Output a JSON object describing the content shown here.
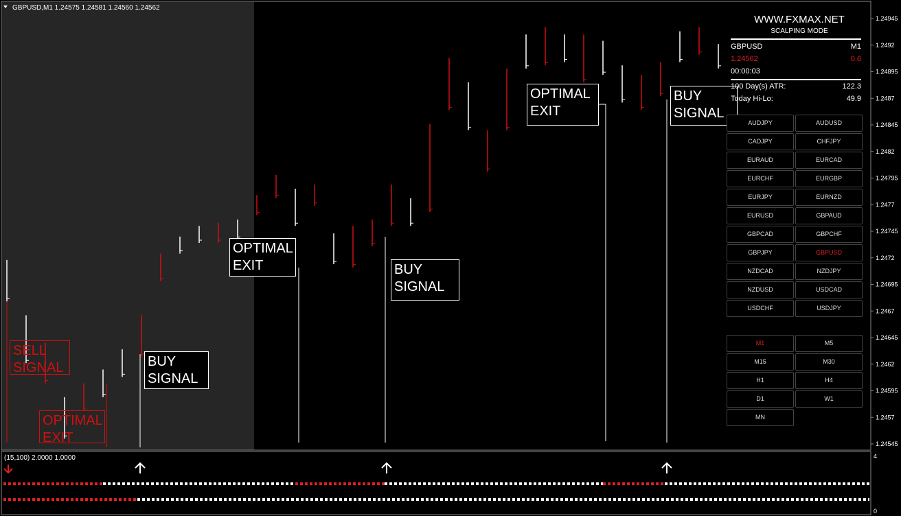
{
  "header": {
    "title": "GBPUSD,M1  1.24575 1.24581 1.24560 1.24562"
  },
  "price_axis": {
    "ticks": [
      1.24945,
      1.2492,
      1.24895,
      1.2487,
      1.24845,
      1.2482,
      1.24795,
      1.2477,
      1.24745,
      1.2472,
      1.24695,
      1.2467,
      1.24645,
      1.2462,
      1.24595,
      1.2457,
      1.24545
    ]
  },
  "bars": [
    {
      "high": 1.24718,
      "low": 1.24679,
      "color": "#ffffff"
    },
    {
      "high": 1.24666,
      "low": 1.24621,
      "color": "#ffffff"
    },
    {
      "high": 1.2464,
      "low": 1.24602,
      "color": "#d01010"
    },
    {
      "high": 1.24589,
      "low": 1.2455,
      "color": "#ffffff"
    },
    {
      "high": 1.24602,
      "low": 1.24576,
      "color": "#d01010"
    },
    {
      "high": 1.24615,
      "low": 1.24589,
      "color": "#ffffff"
    },
    {
      "high": 1.24634,
      "low": 1.24608,
      "color": "#ffffff"
    },
    {
      "high": 1.24666,
      "low": 1.24627,
      "color": "#d01010"
    },
    {
      "high": 1.24724,
      "low": 1.24698,
      "color": "#d01010"
    },
    {
      "high": 1.2474,
      "low": 1.24724,
      "color": "#ffffff"
    },
    {
      "high": 1.2475,
      "low": 1.24734,
      "color": "#ffffff"
    },
    {
      "high": 1.24753,
      "low": 1.24734,
      "color": "#d01010"
    },
    {
      "high": 1.24756,
      "low": 1.24737,
      "color": "#ffffff"
    },
    {
      "high": 1.24779,
      "low": 1.2476,
      "color": "#d01010"
    },
    {
      "high": 1.24798,
      "low": 1.24776,
      "color": "#d01010"
    },
    {
      "high": 1.24785,
      "low": 1.2475,
      "color": "#ffffff"
    },
    {
      "high": 1.24789,
      "low": 1.24769,
      "color": "#d01010"
    },
    {
      "high": 1.24743,
      "low": 1.24714,
      "color": "#ffffff"
    },
    {
      "high": 1.2475,
      "low": 1.24711,
      "color": "#d01010"
    },
    {
      "high": 1.24756,
      "low": 1.24731,
      "color": "#d01010"
    },
    {
      "high": 1.24789,
      "low": 1.2475,
      "color": "#d01010"
    },
    {
      "high": 1.24776,
      "low": 1.2475,
      "color": "#ffffff"
    },
    {
      "high": 1.24846,
      "low": 1.24763,
      "color": "#d01010"
    },
    {
      "high": 1.24908,
      "low": 1.24859,
      "color": "#d01010"
    },
    {
      "high": 1.24885,
      "low": 1.2484,
      "color": "#ffffff"
    },
    {
      "high": 1.2484,
      "low": 1.24801,
      "color": "#d01010"
    },
    {
      "high": 1.24898,
      "low": 1.2484,
      "color": "#d01010"
    },
    {
      "high": 1.2493,
      "low": 1.24898,
      "color": "#ffffff"
    },
    {
      "high": 1.24937,
      "low": 1.24901,
      "color": "#d01010"
    },
    {
      "high": 1.2493,
      "low": 1.24904,
      "color": "#ffffff"
    },
    {
      "high": 1.2493,
      "low": 1.24885,
      "color": "#d01010"
    },
    {
      "high": 1.24924,
      "low": 1.24892,
      "color": "#ffffff"
    },
    {
      "high": 1.24901,
      "low": 1.24866,
      "color": "#ffffff"
    },
    {
      "high": 1.24892,
      "low": 1.24859,
      "color": "#d01010"
    },
    {
      "high": 1.24904,
      "low": 1.24872,
      "color": "#d01010"
    },
    {
      "high": 1.24933,
      "low": 1.24904,
      "color": "#ffffff"
    },
    {
      "high": 1.24937,
      "low": 1.24911,
      "color": "#d01010"
    },
    {
      "high": 1.24921,
      "low": 1.24898,
      "color": "#ffffff"
    }
  ],
  "annotations": [
    "SELL SIGNAL",
    "OPTIMAL EXIT",
    "BUY SIGNAL",
    "OPTIMAL EXIT",
    "BUY SIGNAL",
    "OPTIMAL EXIT",
    "BUY SIGNAL"
  ],
  "panel": {
    "site": "WWW.FXMAX.NET",
    "mode": "SCALPING MODE",
    "symbol": "GBPUSD",
    "timeframe": "M1",
    "price": "1.24562",
    "spread": "0.6",
    "timer": "00:00:03",
    "atr_label": "100 Day(s) ATR:",
    "atr_value": "122.3",
    "hilo_label": "Today Hi-Lo:",
    "hilo_value": "49.9",
    "symbols": [
      "AUDJPY",
      "AUDUSD",
      "CADJPY",
      "CHFJPY",
      "EURAUD",
      "EURCAD",
      "EURCHF",
      "EURGBP",
      "EURJPY",
      "EURNZD",
      "EURUSD",
      "GBPAUD",
      "GBPCAD",
      "GBPCHF",
      "GBPJPY",
      "GBPUSD",
      "NZDCAD",
      "NZDJPY",
      "NZDUSD",
      "USDCAD",
      "USDCHF",
      "USDJPY"
    ],
    "active_symbol": "GBPUSD",
    "timeframes": [
      "M1",
      "M5",
      "M15",
      "M30",
      "H1",
      "H4",
      "D1",
      "W1",
      "MN"
    ],
    "active_timeframe": "M1"
  },
  "indicator": {
    "label": "(15,100) 2.0000 1.0000",
    "axis_top": "4",
    "axis_bottom": "0"
  }
}
